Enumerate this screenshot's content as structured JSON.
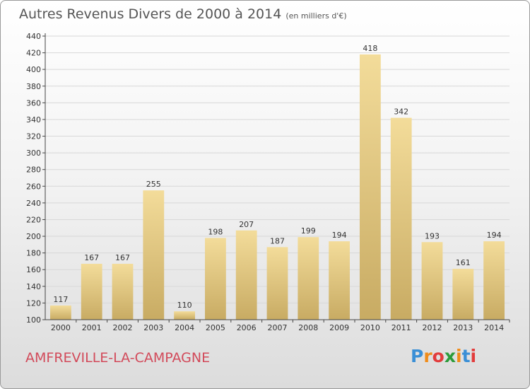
{
  "title": "Autres Revenus Divers de 2000 à 2014",
  "subtitle": "(en milliers d'€)",
  "commune": "AMFREVILLE-LA-CAMPAGNE",
  "logo": {
    "letters": [
      "P",
      "r",
      "o",
      "x",
      "i",
      "t",
      "i"
    ],
    "colors": [
      "#3a8fd6",
      "#f08c1a",
      "#e23b3b",
      "#2c9b3a",
      "#f08c1a",
      "#3a8fd6",
      "#e23b3b"
    ]
  },
  "colors": {
    "bar_top": "#f3dc9a",
    "bar_bottom": "#c8ab63",
    "grid": "#d8d8d8",
    "axis": "#444444",
    "commune": "#d24a5a"
  },
  "chart_data": {
    "type": "bar",
    "categories": [
      "2000",
      "2001",
      "2002",
      "2003",
      "2004",
      "2005",
      "2006",
      "2007",
      "2008",
      "2009",
      "2010",
      "2011",
      "2012",
      "2013",
      "2014"
    ],
    "values": [
      117,
      167,
      167,
      255,
      110,
      198,
      207,
      187,
      199,
      194,
      418,
      342,
      193,
      161,
      194
    ],
    "yticks": [
      100,
      120,
      140,
      160,
      180,
      200,
      220,
      240,
      260,
      280,
      300,
      320,
      340,
      360,
      380,
      400,
      420,
      440
    ],
    "ylim": [
      100,
      440
    ],
    "grid": true,
    "xlabel": "",
    "ylabel": ""
  }
}
